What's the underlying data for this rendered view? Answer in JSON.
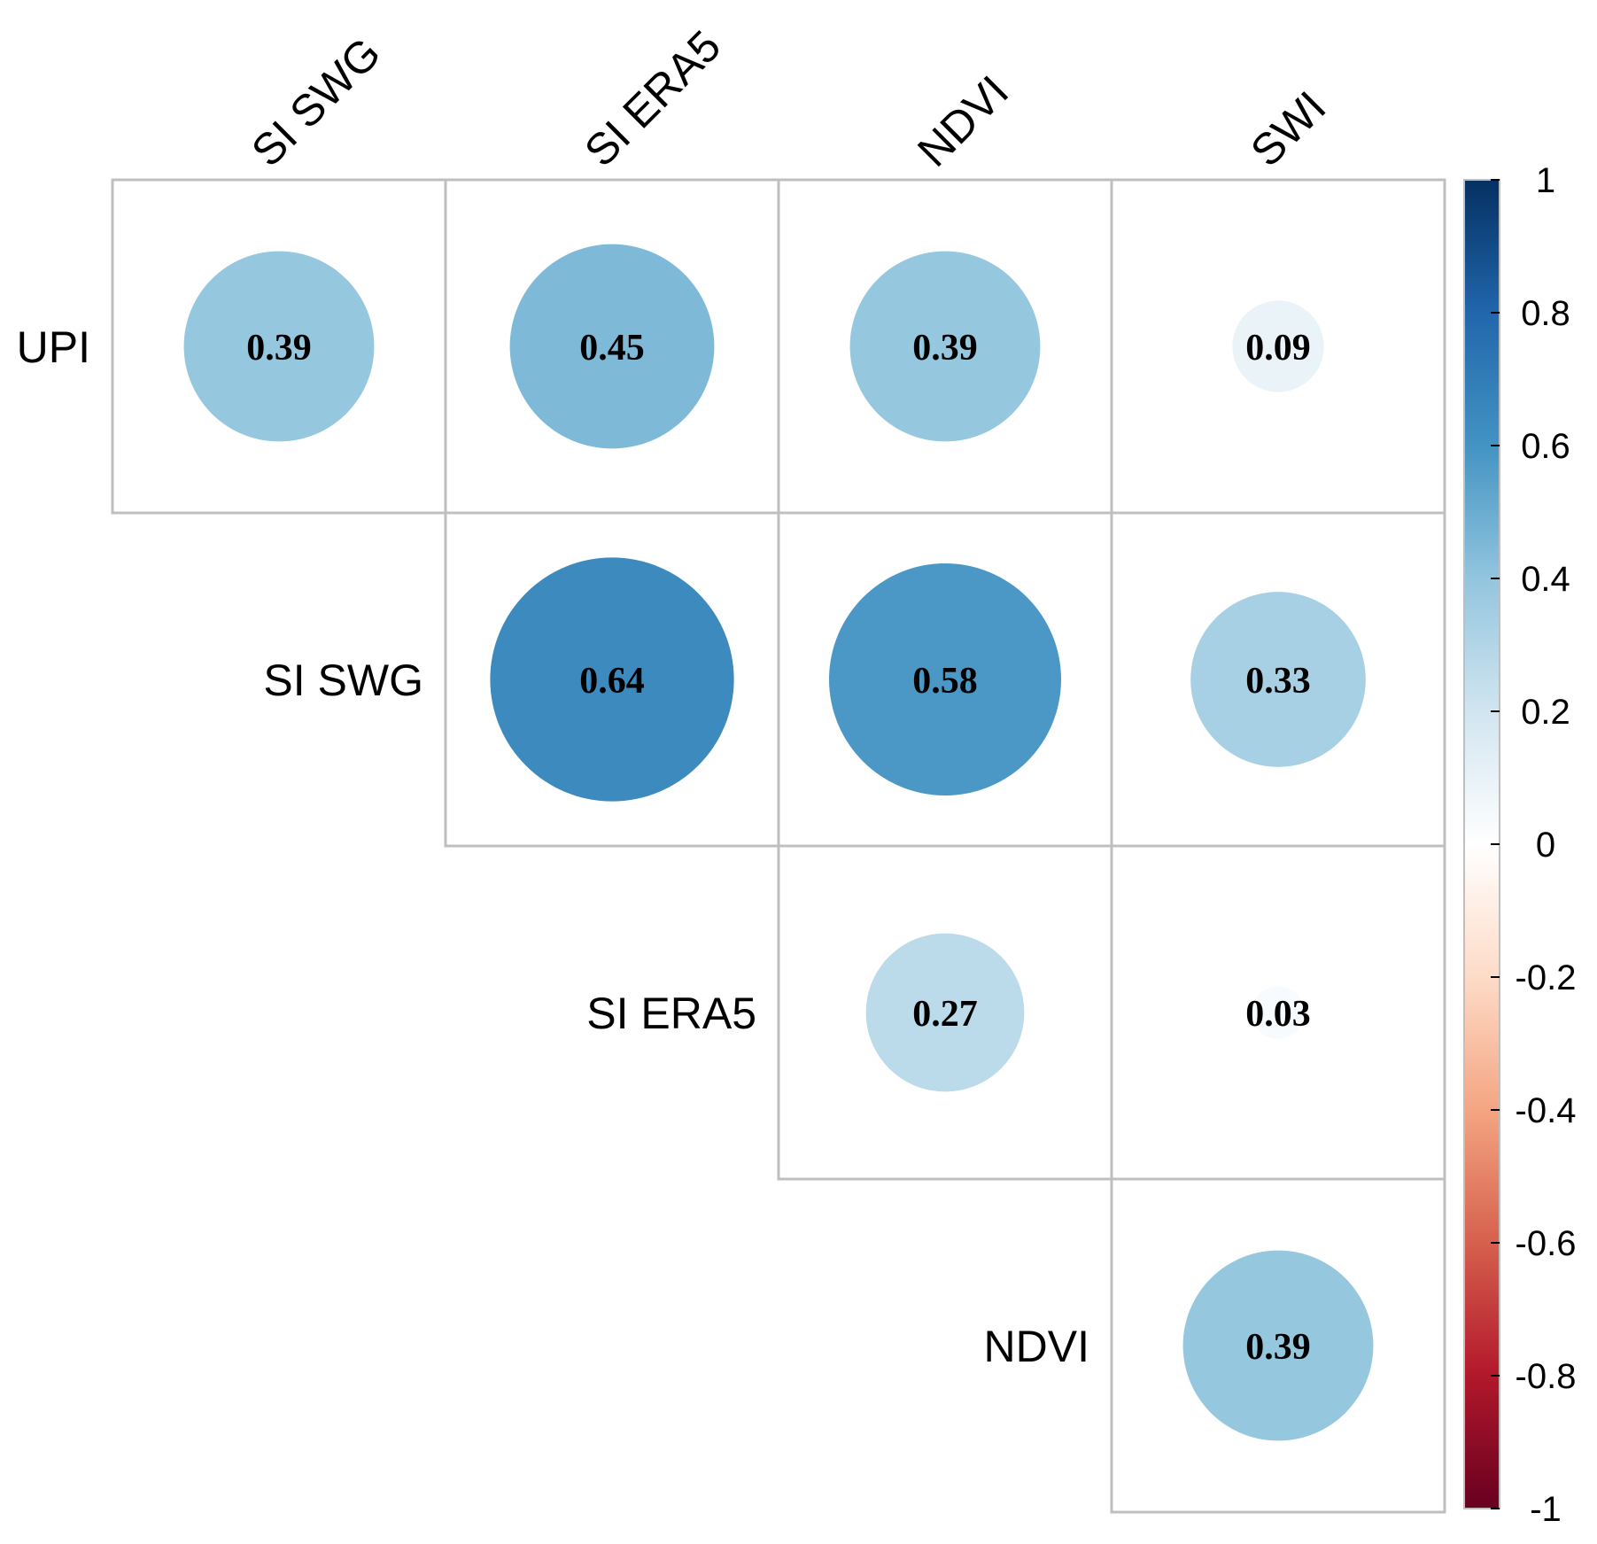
{
  "chart_data": {
    "type": "heatmap",
    "subtype": "correlation-circle-upper",
    "row_labels": [
      "UPI",
      "SI SWG",
      "SI ERA5",
      "NDVI"
    ],
    "col_labels": [
      "SI SWG",
      "SI ERA5",
      "NDVI",
      "SWI"
    ],
    "cells": [
      {
        "row": 0,
        "col": 0,
        "value": 0.39,
        "label": "0.39"
      },
      {
        "row": 0,
        "col": 1,
        "value": 0.45,
        "label": "0.45"
      },
      {
        "row": 0,
        "col": 2,
        "value": 0.39,
        "label": "0.39"
      },
      {
        "row": 0,
        "col": 3,
        "value": 0.09,
        "label": "0.09"
      },
      {
        "row": 1,
        "col": 1,
        "value": 0.64,
        "label": "0.64"
      },
      {
        "row": 1,
        "col": 2,
        "value": 0.58,
        "label": "0.58"
      },
      {
        "row": 1,
        "col": 3,
        "value": 0.33,
        "label": "0.33"
      },
      {
        "row": 2,
        "col": 2,
        "value": 0.27,
        "label": "0.27"
      },
      {
        "row": 2,
        "col": 3,
        "value": 0.03,
        "label": "0.03"
      },
      {
        "row": 3,
        "col": 3,
        "value": 0.39,
        "label": "0.39"
      }
    ],
    "colorbar": {
      "range": [
        -1,
        1
      ],
      "ticks": [
        1,
        0.8,
        0.6,
        0.4,
        0.2,
        0,
        -0.2,
        -0.4,
        -0.6,
        -0.8,
        -1
      ],
      "tick_labels": [
        "1",
        "0.8",
        "0.6",
        "0.4",
        "0.2",
        "0",
        "-0.2",
        "-0.4",
        "-0.6",
        "-0.8",
        "-1"
      ],
      "colors": [
        "#67001F",
        "#B2182B",
        "#D6604D",
        "#F4A582",
        "#FDDBC7",
        "#FFFFFF",
        "#D1E5F0",
        "#92C5DE",
        "#4393C3",
        "#2166AC",
        "#053061"
      ]
    }
  }
}
